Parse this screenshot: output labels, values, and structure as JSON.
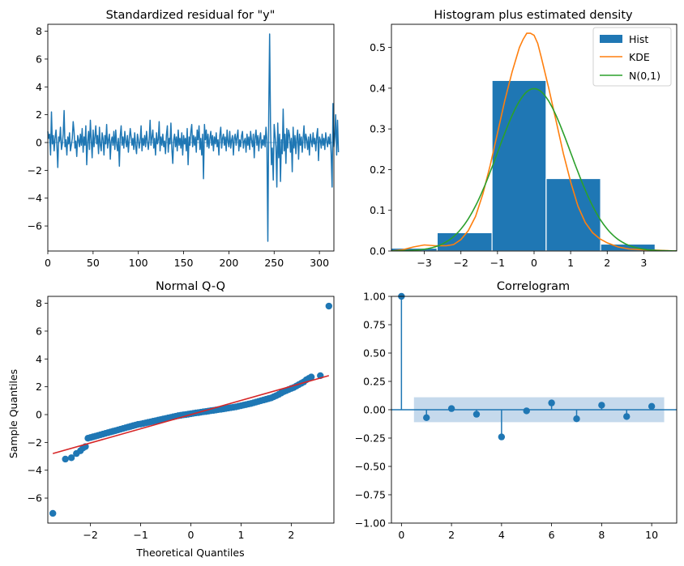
{
  "colors": {
    "blue": "#1f77b4",
    "orange": "#ff7f0e",
    "green": "#2ca02c",
    "red": "#d62728",
    "band": "#c5d9ec"
  },
  "chart_data": [
    {
      "type": "line",
      "title": "Standardized residual for \"y\"",
      "xlim": [
        0,
        316
      ],
      "ylim": [
        -7.8,
        8.5
      ],
      "xticks": [
        0,
        50,
        100,
        150,
        200,
        250,
        300
      ],
      "yticks": [
        -6,
        -4,
        -2,
        0,
        2,
        4,
        6,
        8
      ],
      "xtick_labels": [
        "0",
        "50",
        "100",
        "150",
        "200",
        "250",
        "300"
      ],
      "ytick_labels": [
        "−6",
        "−4",
        "−2",
        "0",
        "2",
        "4",
        "6",
        "8"
      ],
      "baseline": 0,
      "series": [
        {
          "color": "blue",
          "values": [
            0.8,
            0.3,
            0.6,
            -0.9,
            2.2,
            -0.1,
            0.5,
            -0.6,
            0.3,
            0.9,
            -0.2,
            -1.8,
            0.4,
            0.1,
            1.1,
            -0.5,
            -0.1,
            0.6,
            2.3,
            -0.3,
            0.2,
            -0.9,
            0.4,
            -0.1,
            0.7,
            -0.6,
            -0.2,
            0.3,
            1.5,
            0.8,
            -0.4,
            0.1,
            -1.0,
            0.5,
            0.2,
            -0.3,
            0.6,
            -0.2,
            1.0,
            -0.7,
            0.4,
            -0.2,
            1.2,
            -1.6,
            0.1,
            0.8,
            -0.5,
            1.6,
            0.2,
            -1.1,
            0.9,
            -0.3,
            0.4,
            1.2,
            -0.1,
            0.5,
            -0.8,
            1.1,
            -0.2,
            -0.6,
            0.7,
            0.3,
            -0.9,
            0.5,
            -0.1,
            1.3,
            -0.4,
            0.2,
            0.6,
            -1.2,
            0.1,
            0.4,
            -0.2,
            0.8,
            -0.5,
            0.9,
            -0.1,
            -0.6,
            0.3,
            -1.7,
            0.5,
            1.2,
            -0.2,
            0.4,
            -0.4,
            0.8,
            0.1,
            -0.3,
            0.5,
            -0.7,
            0.2,
            1.0,
            0.4,
            -0.2,
            0.3,
            -0.5,
            0.7,
            -0.3,
            -0.8,
            0.6,
            0.2,
            -0.4,
            0.1,
            1.2,
            -0.6,
            0.3,
            -0.2,
            0.5,
            -0.3,
            0.8,
            0.1,
            -0.5,
            0.2,
            1.6,
            -0.2,
            0.4,
            0.9,
            -0.4,
            0.3,
            -0.9,
            0.7,
            -0.1,
            0.2,
            1.5,
            -0.6,
            0.4,
            -0.2,
            0.6,
            -0.3,
            0.1,
            -0.8,
            0.5,
            1.2,
            -0.7,
            0.3,
            -0.1,
            1.4,
            -0.4,
            -1.5,
            0.2,
            0.6,
            -0.3,
            0.4,
            -0.6,
            0.9,
            -0.2,
            0.3,
            -0.4,
            0.7,
            -0.9,
            0.5,
            -0.1,
            0.3,
            -0.6,
            1.0,
            -1.6,
            0.4,
            -0.2,
            0.8,
            1.3,
            -0.3,
            0.5,
            -0.2,
            0.4,
            -0.7,
            0.9,
            0.2,
            1.2,
            -0.5,
            0.3,
            -0.9,
            0.6,
            -2.6,
            1.3,
            0.2,
            0.9,
            -0.3,
            0.6,
            -0.4,
            0.3,
            0.8,
            -0.2,
            0.5,
            -0.6,
            0.4,
            -0.1,
            0.7,
            -0.3,
            0.2,
            -0.9,
            0.5,
            1.1,
            -0.4,
            0.3,
            0.6,
            -0.2,
            0.4,
            -0.6,
            0.9,
            0.1,
            -0.3,
            0.8,
            -0.4,
            0.2,
            0.5,
            -0.9,
            0.3,
            0.6,
            -0.2,
            0.4,
            0.9,
            -0.6,
            0.2,
            -0.3,
            0.5,
            0.8,
            -0.4,
            0.1,
            0.3,
            -0.7,
            0.6,
            -0.2,
            0.4,
            -0.5,
            0.8,
            0.2,
            -0.3,
            0.6,
            -1.1,
            0.4,
            0.9,
            -0.2,
            0.5,
            -0.6,
            0.3,
            0.7,
            -0.4,
            0.2,
            -0.2,
            0.5,
            -0.3,
            1.1,
            0.2,
            -7.1,
            2.0,
            7.8,
            1.2,
            -1.6,
            -0.4,
            -2.7,
            1.3,
            0.5,
            -0.3,
            -3.2,
            1.4,
            -1.1,
            0.6,
            -2.8,
            0.2,
            -0.8,
            2.4,
            -0.6,
            0.6,
            -1.5,
            1.0,
            -0.4,
            0.9,
            0.5,
            -0.7,
            0.3,
            -2.1,
            1.1,
            -0.4,
            0.5,
            -0.8,
            0.3,
            0.9,
            -1.2,
            0.6,
            -0.2,
            0.4,
            -0.7,
            0.3,
            1.2,
            -0.4,
            0.6,
            0.2,
            -0.5,
            0.4,
            -0.9,
            0.6,
            0.1,
            -0.3,
            0.7,
            -0.1,
            0.3,
            -0.6,
            0.5,
            1.0,
            -1.3,
            0.4,
            0.2,
            -0.4,
            0.6,
            -0.2,
            0.3,
            -0.5,
            0.7,
            0.1,
            -0.3,
            0.4,
            -0.1,
            0.6,
            -0.8,
            -3.2,
            2.8,
            -0.3,
            0.4,
            2.0,
            -0.9,
            1.6,
            -0.7
          ]
        }
      ]
    },
    {
      "type": "bar",
      "title": "Histogram plus estimated density",
      "xlim": [
        -3.9,
        3.9
      ],
      "ylim": [
        0,
        0.557
      ],
      "xticks": [
        -3,
        -2,
        -1,
        0,
        1,
        2,
        3
      ],
      "yticks": [
        0.0,
        0.1,
        0.2,
        0.3,
        0.4,
        0.5
      ],
      "xtick_labels": [
        "−3",
        "−2",
        "−1",
        "0",
        "1",
        "2",
        "3"
      ],
      "ytick_labels": [
        "0.0",
        "0.1",
        "0.2",
        "0.3",
        "0.4",
        "0.5"
      ],
      "bins": [
        {
          "x0": -4.1,
          "x1": -2.65,
          "h": 0.007
        },
        {
          "x0": -2.65,
          "x1": -1.15,
          "h": 0.045
        },
        {
          "x0": -1.15,
          "x1": 0.33,
          "h": 0.419
        },
        {
          "x0": 0.33,
          "x1": 1.82,
          "h": 0.178
        },
        {
          "x0": 1.82,
          "x1": 3.31,
          "h": 0.017
        },
        {
          "x0": 3.31,
          "x1": 4.8,
          "h": 0.003
        }
      ],
      "kde": {
        "x": [
          -3.9,
          -3.6,
          -3.3,
          -3.0,
          -2.7,
          -2.4,
          -2.2,
          -2.0,
          -1.8,
          -1.6,
          -1.4,
          -1.2,
          -1.0,
          -0.8,
          -0.6,
          -0.4,
          -0.3,
          -0.2,
          -0.1,
          0.0,
          0.1,
          0.2,
          0.4,
          0.6,
          0.8,
          1.0,
          1.2,
          1.4,
          1.6,
          1.8,
          2.0,
          2.3,
          2.6,
          3.0,
          3.4,
          3.9
        ],
        "y": [
          0.0,
          0.003,
          0.01,
          0.015,
          0.013,
          0.013,
          0.016,
          0.028,
          0.05,
          0.085,
          0.14,
          0.21,
          0.29,
          0.37,
          0.44,
          0.5,
          0.52,
          0.535,
          0.535,
          0.53,
          0.51,
          0.475,
          0.4,
          0.32,
          0.24,
          0.17,
          0.11,
          0.07,
          0.045,
          0.03,
          0.02,
          0.01,
          0.005,
          0.003,
          0.002,
          0.0
        ]
      },
      "legend": [
        "Hist",
        "KDE",
        "N(0,1)"
      ],
      "legend_position": "top-right"
    },
    {
      "type": "scatter",
      "title": "Normal Q-Q",
      "xlabel": "Theoretical Quantiles",
      "ylabel": "Sample Quantiles",
      "xlim": [
        -2.85,
        2.85
      ],
      "ylim": [
        -7.8,
        8.5
      ],
      "xticks": [
        -2,
        -1,
        0,
        1,
        2
      ],
      "yticks": [
        -6,
        -4,
        -2,
        0,
        2,
        4,
        6,
        8
      ],
      "xtick_labels": [
        "−2",
        "−1",
        "0",
        "1",
        "2"
      ],
      "ytick_labels": [
        "−6",
        "−4",
        "−2",
        "0",
        "2",
        "4",
        "6",
        "8"
      ],
      "fit_line": {
        "x": [
          -2.75,
          2.75
        ],
        "y": [
          -2.8,
          2.8
        ]
      },
      "points": {
        "x": [
          -2.75,
          -2.5,
          -2.38,
          -2.28,
          -2.2,
          -2.15,
          -2.1,
          -2.05,
          -2.0,
          -1.95,
          -1.9,
          -1.85,
          -1.8,
          -1.75,
          -1.7,
          -1.65,
          -1.6,
          -1.55,
          -1.5,
          -1.45,
          -1.4,
          -1.35,
          -1.3,
          -1.25,
          -1.2,
          -1.15,
          -1.1,
          -1.05,
          -1.0,
          -0.95,
          -0.9,
          -0.85,
          -0.8,
          -0.75,
          -0.7,
          -0.65,
          -0.6,
          -0.55,
          -0.5,
          -0.45,
          -0.4,
          -0.35,
          -0.3,
          -0.25,
          -0.2,
          -0.15,
          -0.1,
          -0.05,
          0.0,
          0.05,
          0.1,
          0.15,
          0.2,
          0.25,
          0.3,
          0.35,
          0.4,
          0.45,
          0.5,
          0.55,
          0.6,
          0.65,
          0.7,
          0.75,
          0.8,
          0.85,
          0.9,
          0.95,
          1.0,
          1.05,
          1.1,
          1.15,
          1.2,
          1.25,
          1.3,
          1.35,
          1.4,
          1.45,
          1.5,
          1.55,
          1.6,
          1.65,
          1.7,
          1.75,
          1.8,
          1.85,
          1.9,
          1.95,
          2.0,
          2.05,
          2.1,
          2.15,
          2.2,
          2.25,
          2.3,
          2.35,
          2.4,
          2.58,
          2.75
        ],
        "y": [
          -7.1,
          -3.2,
          -3.1,
          -2.8,
          -2.6,
          -2.4,
          -2.3,
          -1.7,
          -1.65,
          -1.6,
          -1.55,
          -1.5,
          -1.45,
          -1.4,
          -1.35,
          -1.3,
          -1.25,
          -1.2,
          -1.15,
          -1.1,
          -1.05,
          -1.0,
          -0.95,
          -0.9,
          -0.85,
          -0.8,
          -0.75,
          -0.7,
          -0.68,
          -0.64,
          -0.6,
          -0.56,
          -0.52,
          -0.48,
          -0.44,
          -0.4,
          -0.36,
          -0.32,
          -0.28,
          -0.24,
          -0.2,
          -0.16,
          -0.12,
          -0.08,
          -0.05,
          -0.02,
          0.0,
          0.03,
          0.06,
          0.09,
          0.12,
          0.14,
          0.17,
          0.2,
          0.22,
          0.25,
          0.28,
          0.3,
          0.33,
          0.36,
          0.38,
          0.41,
          0.44,
          0.47,
          0.5,
          0.53,
          0.56,
          0.6,
          0.64,
          0.68,
          0.72,
          0.76,
          0.8,
          0.85,
          0.9,
          0.95,
          1.0,
          1.05,
          1.1,
          1.15,
          1.2,
          1.28,
          1.36,
          1.45,
          1.55,
          1.65,
          1.72,
          1.8,
          1.88,
          1.95,
          2.05,
          2.15,
          2.25,
          2.35,
          2.5,
          2.6,
          2.7,
          2.8,
          7.8
        ]
      }
    },
    {
      "type": "bar",
      "title": "Correlogram",
      "xlim": [
        -0.4,
        11.0
      ],
      "ylim": [
        -1.0,
        1.0
      ],
      "xticks": [
        0,
        2,
        4,
        6,
        8,
        10
      ],
      "yticks": [
        -1.0,
        -0.75,
        -0.5,
        -0.25,
        0.0,
        0.25,
        0.5,
        0.75,
        1.0
      ],
      "xtick_labels": [
        "0",
        "2",
        "4",
        "6",
        "8",
        "10"
      ],
      "ytick_labels": [
        "−1.00",
        "−0.75",
        "−0.50",
        "−0.25",
        "0.00",
        "0.25",
        "0.50",
        "0.75",
        "1.00"
      ],
      "lags": [
        0,
        1,
        2,
        3,
        4,
        5,
        6,
        7,
        8,
        9,
        10
      ],
      "values": [
        1.0,
        -0.07,
        0.01,
        -0.04,
        -0.24,
        -0.01,
        0.06,
        -0.08,
        0.04,
        -0.06,
        0.03
      ],
      "confidence_band": {
        "x": [
          0.5,
          10.5
        ],
        "limit": 0.11
      }
    }
  ]
}
